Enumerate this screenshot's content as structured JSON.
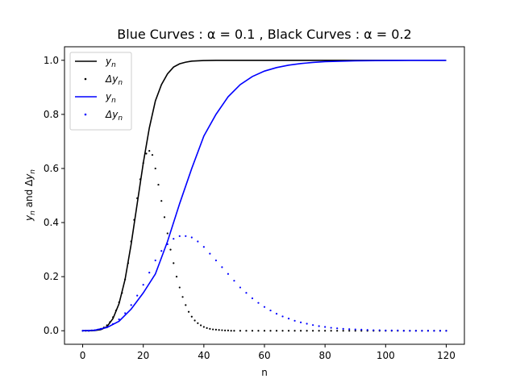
{
  "chart_data": {
    "type": "line",
    "title": "Blue Curves : α = 0.1 , Black Curves : α = 0.2",
    "xlabel": "n",
    "ylabel": "y_n and Δy_n",
    "xlim": [
      -6,
      126
    ],
    "ylim": [
      -0.05,
      1.05
    ],
    "xticks": [
      0,
      20,
      40,
      60,
      80,
      100,
      120
    ],
    "yticks": [
      0.0,
      0.2,
      0.4,
      0.6,
      0.8,
      1.0
    ],
    "grid": false,
    "legend_position": "top-left",
    "legend": [
      {
        "label": "y_n",
        "style": "line",
        "color": "#000000"
      },
      {
        "label": "Δy_n",
        "style": "dots",
        "color": "#000000"
      },
      {
        "label": "y_n",
        "style": "line",
        "color": "#0000ff"
      },
      {
        "label": "Δy_n",
        "style": "dots",
        "color": "#0000ff"
      }
    ],
    "series": [
      {
        "alpha": 0.2,
        "color": "#000000",
        "x": [
          0,
          2,
          4,
          6,
          8,
          10,
          12,
          14,
          16,
          18,
          20,
          22,
          24,
          26,
          28,
          30,
          32,
          34,
          36,
          38,
          40,
          44,
          50,
          60,
          80,
          100,
          120
        ],
        "y": [
          0.0,
          0.0,
          0.001,
          0.004,
          0.015,
          0.045,
          0.1,
          0.19,
          0.32,
          0.47,
          0.62,
          0.75,
          0.85,
          0.91,
          0.95,
          0.975,
          0.987,
          0.993,
          0.997,
          0.998,
          0.999,
          1.0,
          1.0,
          1.0,
          1.0,
          1.0,
          1.0
        ],
        "dy_x": [
          0,
          1,
          2,
          3,
          4,
          5,
          6,
          7,
          8,
          9,
          10,
          11,
          12,
          13,
          14,
          15,
          16,
          17,
          18,
          19,
          20,
          21,
          22,
          23,
          24,
          25,
          26,
          27,
          28,
          29,
          30,
          31,
          32,
          33,
          34,
          35,
          36,
          37,
          38,
          39,
          40,
          41,
          42,
          43,
          44,
          45,
          46,
          47,
          48,
          49,
          50,
          52,
          54,
          56,
          58,
          60,
          62,
          64,
          66,
          68,
          70,
          72,
          74,
          76,
          78,
          80,
          82,
          84,
          86,
          88,
          90,
          92,
          94,
          96,
          98,
          100,
          102,
          104,
          106,
          108,
          110,
          112,
          114,
          116,
          118,
          120
        ],
        "dy": [
          0.0,
          0.0,
          0.0,
          0.001,
          0.002,
          0.004,
          0.007,
          0.012,
          0.02,
          0.032,
          0.05,
          0.075,
          0.105,
          0.14,
          0.19,
          0.25,
          0.33,
          0.41,
          0.49,
          0.56,
          0.62,
          0.655,
          0.665,
          0.65,
          0.6,
          0.54,
          0.48,
          0.42,
          0.36,
          0.3,
          0.25,
          0.2,
          0.16,
          0.125,
          0.095,
          0.07,
          0.052,
          0.038,
          0.028,
          0.02,
          0.014,
          0.01,
          0.007,
          0.005,
          0.004,
          0.003,
          0.002,
          0.001,
          0.001,
          0.0,
          0.0,
          0.0,
          0.0,
          0.0,
          0.0,
          0.0,
          0.0,
          0.0,
          0.0,
          0.0,
          0.0,
          0.0,
          0.0,
          0.0,
          0.0,
          0.0,
          0.0,
          0.0,
          0.0,
          0.0,
          0.0,
          0.0,
          0.0,
          0.0,
          0.0,
          0.0,
          0.0,
          0.0,
          0.0,
          0.0,
          0.0,
          0.0,
          0.0,
          0.0,
          0.0,
          0.0
        ]
      },
      {
        "alpha": 0.1,
        "color": "#0000ff",
        "x": [
          0,
          4,
          8,
          12,
          16,
          20,
          24,
          28,
          32,
          36,
          40,
          44,
          48,
          52,
          56,
          60,
          64,
          68,
          72,
          76,
          80,
          90,
          100,
          110,
          120
        ],
        "y": [
          0.0,
          0.002,
          0.012,
          0.035,
          0.08,
          0.14,
          0.21,
          0.33,
          0.47,
          0.6,
          0.72,
          0.8,
          0.865,
          0.91,
          0.94,
          0.96,
          0.973,
          0.982,
          0.988,
          0.992,
          0.995,
          0.998,
          0.999,
          1.0,
          1.0
        ],
        "dy_x": [
          0,
          2,
          4,
          6,
          8,
          10,
          12,
          14,
          16,
          18,
          20,
          22,
          24,
          26,
          28,
          30,
          32,
          34,
          36,
          38,
          40,
          42,
          44,
          46,
          48,
          50,
          52,
          54,
          56,
          58,
          60,
          62,
          64,
          66,
          68,
          70,
          72,
          74,
          76,
          78,
          80,
          82,
          84,
          86,
          88,
          90,
          92,
          94,
          96,
          98,
          100,
          102,
          104,
          106,
          108,
          110,
          112,
          114,
          116,
          118,
          120
        ],
        "dy": [
          0.0,
          0.0,
          0.002,
          0.006,
          0.013,
          0.025,
          0.042,
          0.065,
          0.095,
          0.13,
          0.17,
          0.215,
          0.26,
          0.295,
          0.32,
          0.34,
          0.35,
          0.35,
          0.345,
          0.33,
          0.31,
          0.285,
          0.26,
          0.235,
          0.21,
          0.185,
          0.16,
          0.14,
          0.12,
          0.103,
          0.088,
          0.075,
          0.063,
          0.053,
          0.045,
          0.037,
          0.031,
          0.026,
          0.021,
          0.017,
          0.014,
          0.011,
          0.009,
          0.007,
          0.006,
          0.005,
          0.004,
          0.003,
          0.002,
          0.002,
          0.001,
          0.001,
          0.001,
          0.0,
          0.0,
          0.0,
          0.0,
          0.0,
          0.0,
          0.0,
          0.0
        ]
      }
    ]
  }
}
